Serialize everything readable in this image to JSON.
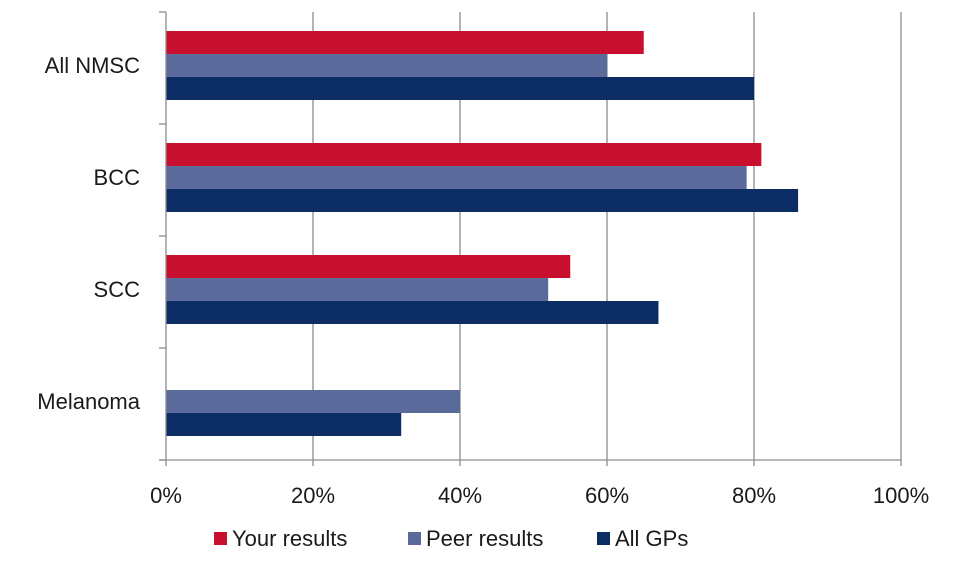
{
  "chart_data": {
    "type": "bar",
    "orientation": "horizontal",
    "categories": [
      "All NMSC",
      "BCC",
      "SCC",
      "Melanoma"
    ],
    "series": [
      {
        "name": "Your results",
        "color": "#c8102e",
        "values": [
          65,
          81,
          55,
          null
        ]
      },
      {
        "name": "Peer results",
        "color": "#5a6a9a",
        "values": [
          60,
          79,
          52,
          40
        ]
      },
      {
        "name": "All GPs",
        "color": "#0b2d63",
        "values": [
          80,
          86,
          67,
          32
        ]
      }
    ],
    "xlim": [
      0,
      100
    ],
    "x_ticks": [
      0,
      20,
      40,
      60,
      80,
      100
    ],
    "x_tick_labels": [
      "0%",
      "20%",
      "40%",
      "60%",
      "80%",
      "100%"
    ],
    "grid": true,
    "legend": "bottom"
  }
}
